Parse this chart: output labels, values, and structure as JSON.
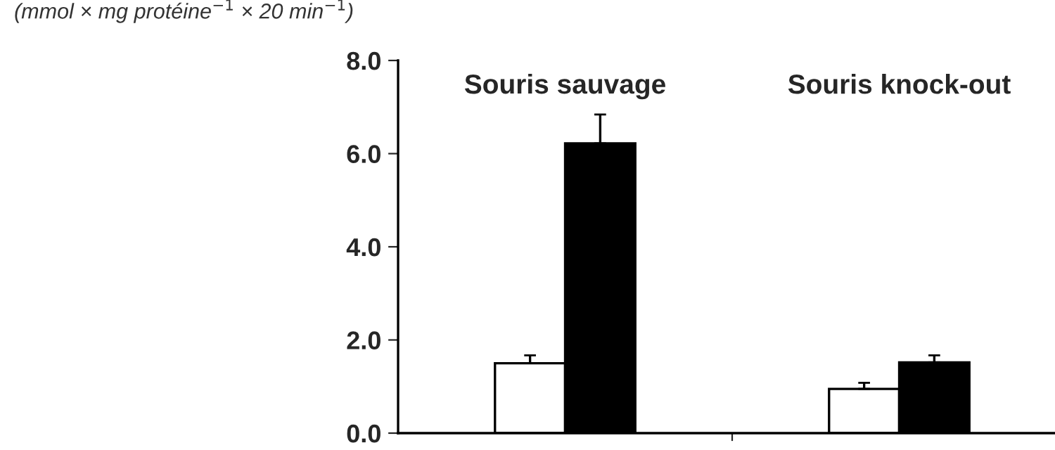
{
  "chart_data": {
    "type": "bar",
    "ylabel": "(mmol × mg protéine$^{−1}$ × 20 min$^{−1}$)",
    "categories": [
      "Souris sauvage",
      "Souris knock-out"
    ],
    "series": [
      {
        "color": "#ffffff",
        "values": [
          1.5,
          0.95
        ],
        "errors": [
          [
            1.5,
            1.67
          ],
          [
            0.95,
            1.08
          ]
        ]
      },
      {
        "color": "#000000",
        "values": [
          6.22,
          1.52
        ],
        "errors": [
          [
            6.22,
            6.84
          ],
          [
            1.52,
            1.67
          ]
        ]
      }
    ],
    "ylim": [
      0,
      8
    ],
    "yticks": [
      {
        "value": 0,
        "label": "0.0"
      },
      {
        "value": 2,
        "label": "2.0"
      },
      {
        "value": 4,
        "label": "4.0"
      },
      {
        "value": 6,
        "label": "6.0"
      },
      {
        "value": 8,
        "label": "8.0"
      }
    ],
    "grid": false,
    "legend": false
  }
}
